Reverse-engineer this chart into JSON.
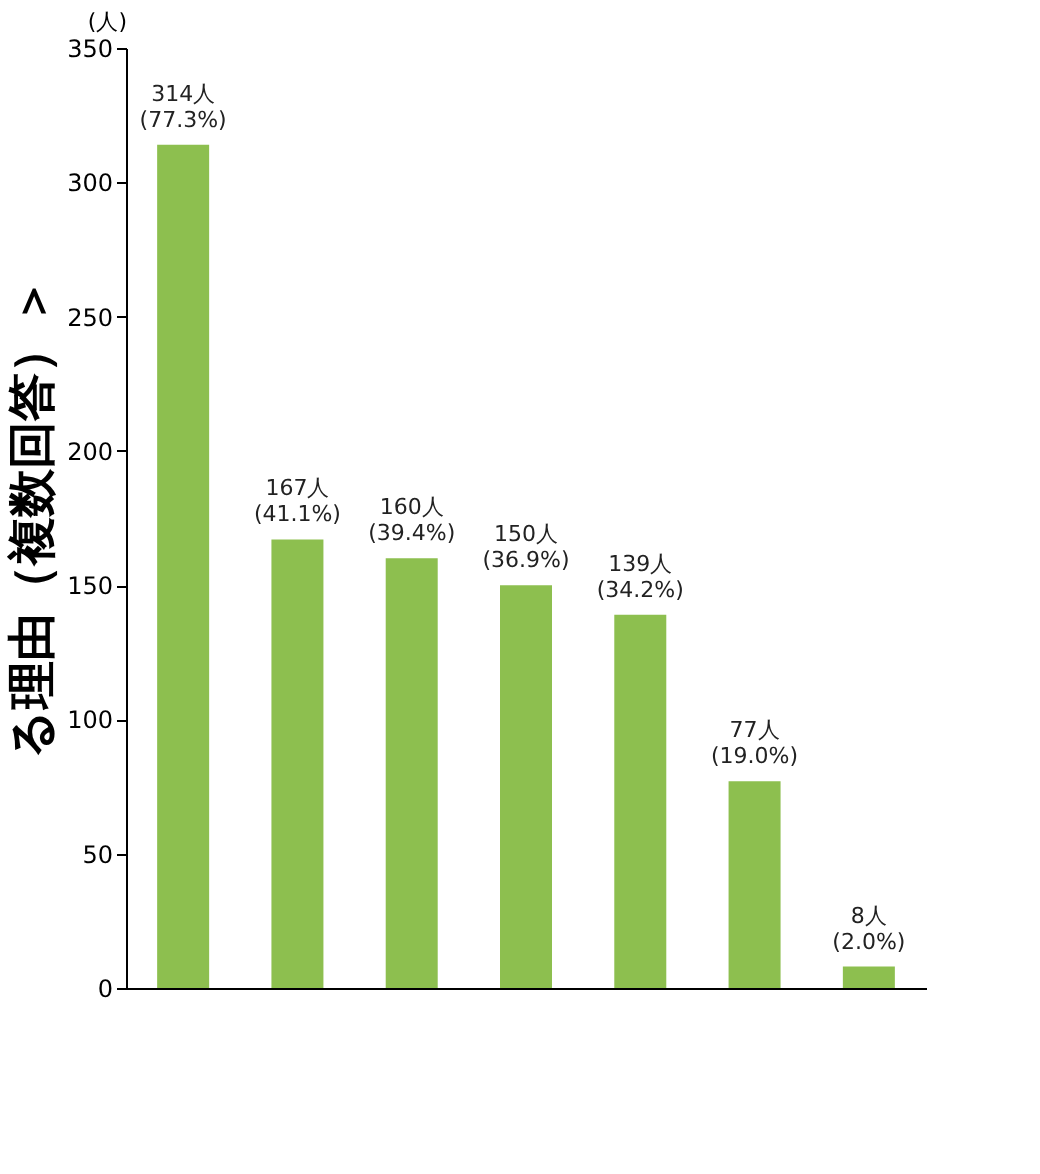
{
  "chart_data": {
    "type": "bar",
    "title": "る理由（複数回答）＞",
    "ylabel": "(人)",
    "categories": [
      null,
      null,
      null,
      null,
      null,
      null,
      null
    ],
    "values": [
      314,
      167,
      160,
      150,
      139,
      77,
      8
    ],
    "value_labels": [
      "314人\n(77.3%)",
      "167人\n(41.1%)",
      "160人\n(39.4%)",
      "150人\n(36.9%)",
      "139人\n(34.2%)",
      "77人\n(19.0%)",
      "8人\n(2.0%)"
    ],
    "color": "#8dbf4f",
    "ylim": [
      0,
      350
    ],
    "yticks": [
      0,
      50,
      100,
      150,
      200,
      250,
      300,
      350
    ],
    "grid": false
  }
}
